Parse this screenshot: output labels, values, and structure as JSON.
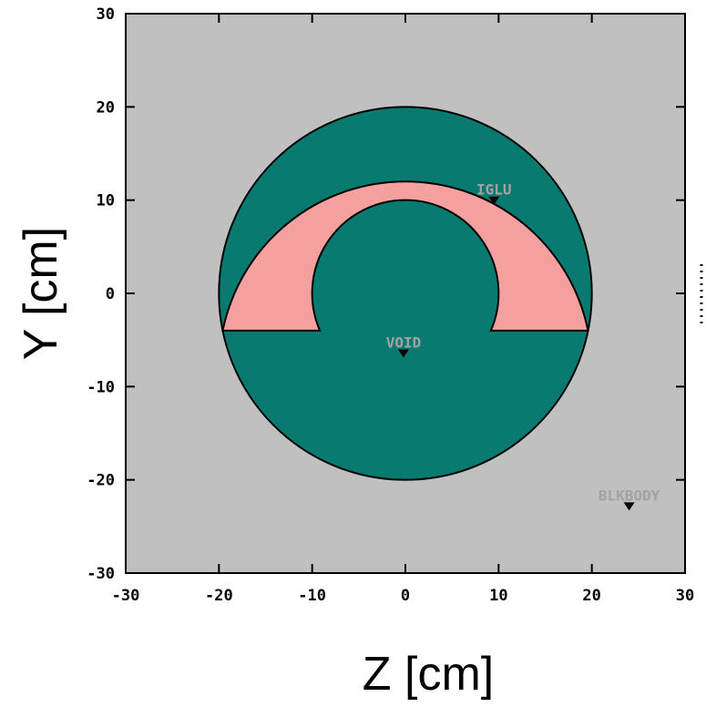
{
  "diagram": {
    "axes": {
      "x_title": "Z [cm]",
      "y_title": "Y [cm]",
      "x_range": [
        -30,
        30
      ],
      "y_range": [
        -30,
        30
      ],
      "x_ticks": [
        {
          "value": -30,
          "label": "-30"
        },
        {
          "value": -20,
          "label": "-20"
        },
        {
          "value": -10,
          "label": "-10"
        },
        {
          "value": 0,
          "label": "0"
        },
        {
          "value": 10,
          "label": "10"
        },
        {
          "value": 20,
          "label": "20"
        },
        {
          "value": 30,
          "label": "30"
        }
      ],
      "y_ticks": [
        {
          "value": 30,
          "label": "30"
        },
        {
          "value": 20,
          "label": "20"
        },
        {
          "value": 10,
          "label": "10"
        },
        {
          "value": 0,
          "label": "0"
        },
        {
          "value": -10,
          "label": "-10"
        },
        {
          "value": -20,
          "label": "-20"
        },
        {
          "value": -30,
          "label": "-30"
        }
      ]
    },
    "geometry": {
      "outer_radius": 20,
      "inner_radius": 10,
      "cut_plane_y": -4
    },
    "regions": [
      {
        "name": "IGLU",
        "marker_z": 9.5,
        "marker_y": 9.8
      },
      {
        "name": "VOID",
        "marker_z": -0.2,
        "marker_y": -6.6
      },
      {
        "name": "BLKBODY",
        "marker_z": 24,
        "marker_y": -23
      }
    ],
    "colors": {
      "background": "#c0c0c0",
      "iglu": "#f4a09e",
      "void": "#087a70",
      "outline": "#000000",
      "region_label": "#a3a3a3"
    }
  }
}
